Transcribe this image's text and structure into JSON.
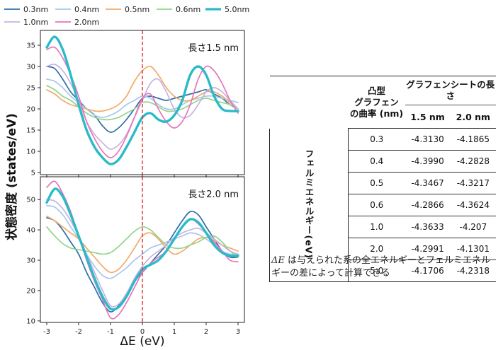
{
  "chart_data": {
    "type": "line",
    "legend": {
      "placement": "top",
      "entries": [
        {
          "name": "0.3nm",
          "color": "#2e6ea6"
        },
        {
          "name": "0.4nm",
          "color": "#a9c6ea"
        },
        {
          "name": "0.5nm",
          "color": "#f5a96a"
        },
        {
          "name": "0.6nm",
          "color": "#93d58a"
        },
        {
          "name": "1.0nm",
          "color": "#c8b3df"
        },
        {
          "name": "2.0nm",
          "color": "#e675bd"
        },
        {
          "name": "5.0nm",
          "color": "#2bbac8"
        }
      ]
    },
    "ylabel": "状態密度 (states/eV)",
    "xlabel": "ΔE (eV)",
    "xlim": [
      -3.2,
      3.2
    ],
    "xticks": [
      -3,
      -2,
      -1,
      0,
      1,
      2,
      3
    ],
    "marker_line": {
      "x": 0,
      "color": "#e63b3b",
      "style": "dashed"
    },
    "panels": [
      {
        "label": "長さ1.5 nm",
        "ylim": [
          4.5,
          38.5
        ],
        "yticks": [
          5,
          10,
          15,
          20,
          25,
          30,
          35
        ],
        "x": [
          -3.0,
          -2.75,
          -2.5,
          -2.25,
          -2.0,
          -1.75,
          -1.5,
          -1.25,
          -1.0,
          -0.75,
          -0.5,
          -0.25,
          0.0,
          0.25,
          0.5,
          0.75,
          1.0,
          1.25,
          1.5,
          1.75,
          2.0,
          2.25,
          2.5,
          2.75,
          3.0
        ],
        "series": [
          {
            "name": "0.3nm",
            "values": [
              30,
              29.5,
              27,
              24,
              22,
              20,
              18.5,
              16,
              14.5,
              15.5,
              17.5,
              20,
              22.5,
              23,
              22.5,
              22,
              22.5,
              23,
              23.5,
              24,
              24.5,
              23.5,
              22.5,
              21,
              20
            ]
          },
          {
            "name": "0.4nm",
            "values": [
              27,
              26.5,
              25,
              23,
              21.5,
              20,
              18.5,
              18,
              18.5,
              19.5,
              21,
              22,
              23,
              22.5,
              21,
              20,
              20,
              21,
              22,
              22.5,
              23,
              23,
              22.5,
              22,
              21.5
            ]
          },
          {
            "name": "0.5nm",
            "values": [
              24.5,
              23.5,
              22,
              21,
              20.5,
              20,
              19.5,
              19.5,
              20,
              21,
              23,
              26.5,
              29,
              30,
              28,
              25,
              23,
              22,
              22,
              23,
              24,
              24,
              23,
              21.5,
              20
            ]
          },
          {
            "name": "0.6nm",
            "values": [
              25.5,
              24.5,
              23,
              22,
              20.5,
              19,
              18,
              17.5,
              17.5,
              18,
              19,
              20,
              21.5,
              21.5,
              20.5,
              19.5,
              19.5,
              20,
              21,
              22,
              22.5,
              22,
              21.5,
              21,
              20
            ]
          },
          {
            "name": "1.0nm",
            "values": [
              30,
              30.5,
              29,
              26,
              22,
              17,
              14,
              12,
              10.5,
              11.5,
              14,
              18,
              22,
              26,
              27,
              24,
              20,
              18,
              18.5,
              21,
              24,
              25,
              24,
              22,
              20
            ]
          },
          {
            "name": "2.0nm",
            "values": [
              34,
              34.5,
              32,
              28,
              23,
              17,
              13,
              10,
              8.5,
              10,
              13.5,
              18,
              22.5,
              23.5,
              20,
              17,
              15.5,
              17,
              21,
              27,
              30,
              29,
              26,
              22,
              19
            ]
          },
          {
            "name": "5.0nm",
            "values": [
              34.5,
              37,
              34,
              28,
              21,
              15,
              11,
              8.5,
              7,
              8,
              11,
              14.5,
              18,
              19,
              17.5,
              17,
              18.5,
              22,
              28,
              30,
              28,
              23,
              20,
              19.5,
              19.5
            ]
          }
        ]
      },
      {
        "label": "長さ2.0 nm",
        "ylim": [
          9.5,
          57.5
        ],
        "yticks": [
          10,
          20,
          30,
          40,
          50
        ],
        "x": [
          -3.0,
          -2.75,
          -2.5,
          -2.25,
          -2.0,
          -1.75,
          -1.5,
          -1.25,
          -1.0,
          -0.75,
          -0.5,
          -0.25,
          0.0,
          0.25,
          0.5,
          0.75,
          1.0,
          1.25,
          1.5,
          1.75,
          2.0,
          2.25,
          2.5,
          2.75,
          3.0
        ],
        "series": [
          {
            "name": "0.3nm",
            "values": [
              44,
              43,
              40,
              36,
              32,
              26,
              21,
              16,
              13,
              15,
              19,
              23,
              26,
              29,
              32,
              35,
              39,
              43,
              46,
              45,
              41,
              37,
              33,
              31,
              31
            ]
          },
          {
            "name": "0.4nm",
            "values": [
              48,
              47.5,
              45,
              41,
              37,
              32,
              28,
              25,
              24,
              25.5,
              27.5,
              30,
              32,
              34,
              35,
              36,
              37,
              38,
              39,
              38.5,
              37,
              35,
              33,
              32,
              32
            ]
          },
          {
            "name": "0.5nm",
            "values": [
              44.5,
              43,
              41,
              39,
              37,
              34,
              31,
              28,
              26,
              27,
              30,
              34,
              38,
              39,
              37,
              34,
              32,
              33,
              35,
              37,
              37.5,
              36.5,
              35,
              34,
              33
            ]
          },
          {
            "name": "0.6nm",
            "values": [
              41,
              38,
              35.5,
              34,
              33.5,
              33,
              32.5,
              32,
              32.5,
              34.5,
              37,
              39.5,
              41,
              40,
              37.5,
              35,
              34,
              34,
              35,
              36,
              37.5,
              38,
              36,
              33,
              31
            ]
          },
          {
            "name": "1.0nm",
            "values": [
              50,
              49.5,
              47,
              43,
              38,
              32,
              26,
              20,
              15,
              15.5,
              19,
              24,
              28,
              31,
              33,
              35,
              37.5,
              39,
              40,
              40.5,
              39,
              37,
              35,
              33,
              32
            ]
          },
          {
            "name": "2.0nm",
            "values": [
              54,
              56,
              52,
              46,
              38,
              30,
              23,
              17,
              11,
              12,
              16,
              21,
              26,
              29,
              31,
              33,
              37,
              41,
              43.5,
              42,
              39,
              36,
              33,
              30,
              29.5
            ]
          },
          {
            "name": "5.0nm",
            "values": [
              49,
              53.5,
              51,
              45,
              38,
              31,
              24,
              18,
              14,
              14.5,
              18,
              23,
              27,
              28.5,
              30,
              33,
              37,
              41,
              43.5,
              42.5,
              39,
              35,
              32.5,
              31.5,
              31.5
            ]
          }
        ]
      }
    ]
  },
  "table": {
    "corner_header_lines": [
      "凸型",
      "グラフェン",
      "の曲率 (nm)"
    ],
    "group_header": "グラフェンシートの長さ",
    "column_headers": [
      "1.5 nm",
      "2.0 nm"
    ],
    "row_group_label": "フェルミエネルギー(eV)",
    "rows": [
      {
        "curvature": "0.3",
        "v15": "-4.3130",
        "v20": "-4.1865"
      },
      {
        "curvature": "0.4",
        "v15": "-4.3990",
        "v20": "-4.2828"
      },
      {
        "curvature": "0.5",
        "v15": "-4.3467",
        "v20": "-4.3217"
      },
      {
        "curvature": "0.6",
        "v15": "-4.2866",
        "v20": "-4.3624"
      },
      {
        "curvature": "1.0",
        "v15": "-4.3633",
        "v20": "-4.207"
      },
      {
        "curvature": "2.0",
        "v15": "-4.2991",
        "v20": "-4.1301"
      },
      {
        "curvature": "5.0",
        "v15": "-4.1706",
        "v20": "-4.2318"
      }
    ]
  },
  "note": {
    "symbol": "ΔE",
    "text": " は与えられた系の全エネルギーとフェルミエネルギーの差によって計算できる"
  }
}
